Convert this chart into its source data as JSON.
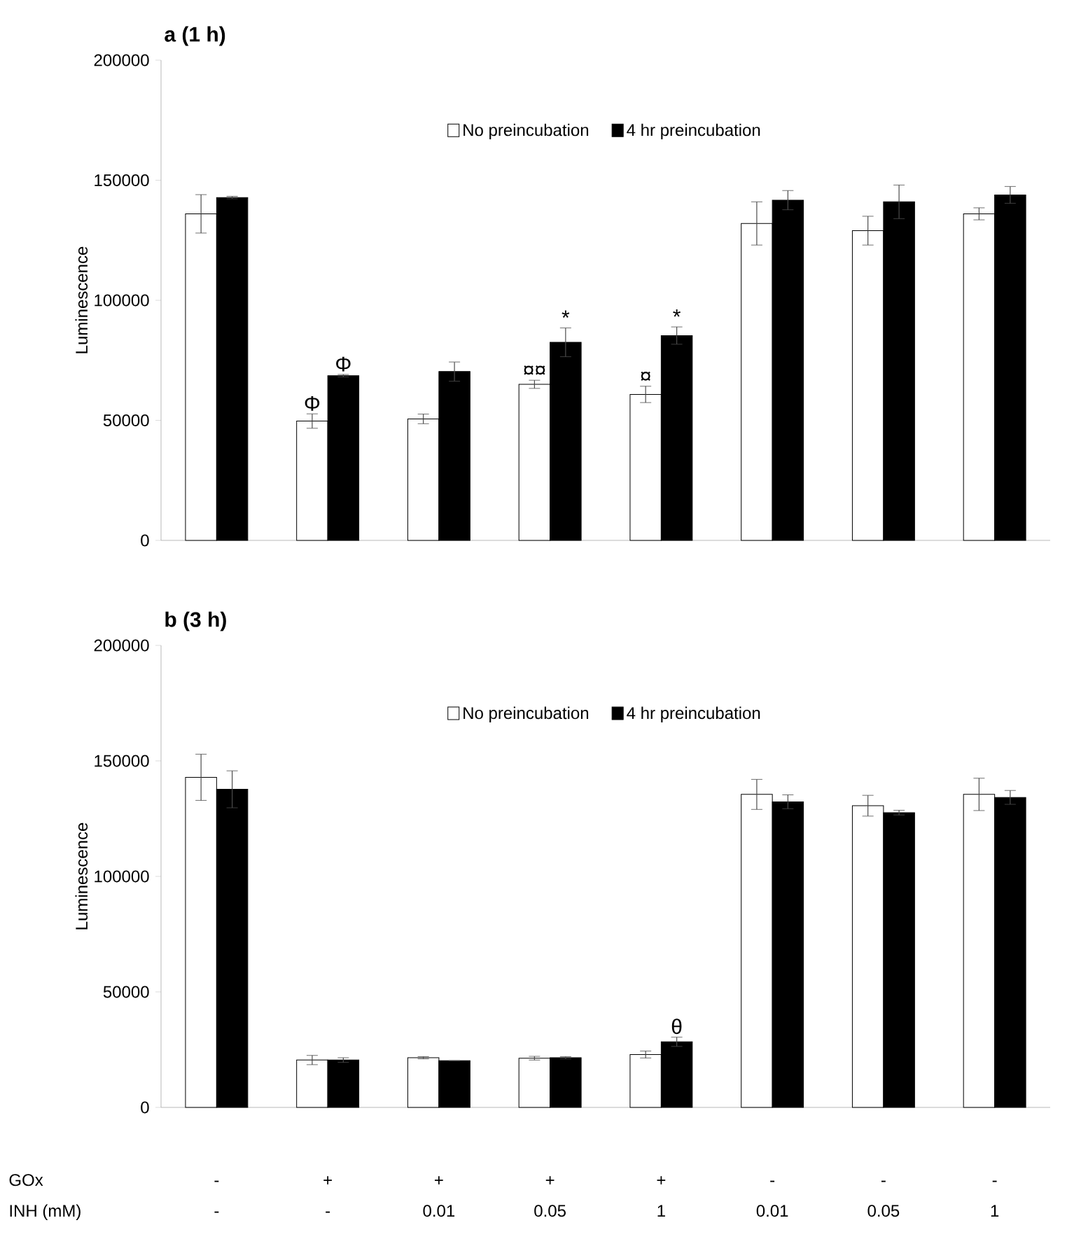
{
  "chart_data": [
    {
      "type": "bar",
      "title": "a (1 h)",
      "ylabel": "Luminescence",
      "categories": [
        null,
        null,
        null,
        null,
        null,
        null,
        null,
        null
      ],
      "series": [
        {
          "name": "No preincubation",
          "color": "#ffffff",
          "values": [
            136000,
            49700,
            50600,
            65000,
            60800,
            132000,
            129000,
            136000
          ],
          "errors": [
            8000,
            3000,
            2000,
            1700,
            3400,
            9000,
            6000,
            2500
          ]
        },
        {
          "name": "4 hr preincubation",
          "color": "#000000",
          "values": [
            142800,
            68600,
            70300,
            82500,
            85300,
            141700,
            141000,
            143900
          ],
          "errors": [
            500,
            500,
            4000,
            6000,
            3600,
            4000,
            7000,
            3500
          ]
        }
      ],
      "ylim": [
        0,
        200000
      ],
      "yticks": [
        0,
        50000,
        100000,
        150000,
        200000
      ],
      "legend": "top",
      "tick_labels": "y",
      "annotations": [
        "Φ",
        "Φ",
        "¤¤",
        "*",
        "¤",
        "*"
      ]
    },
    {
      "type": "bar",
      "title": "b (3 h)",
      "ylabel": "Luminescence",
      "categories": [
        "-",
        "-",
        "0.01",
        "0.05",
        "1",
        "0.01",
        "0.05",
        "1"
      ],
      "series": [
        {
          "name": "No preincubation",
          "color": "#ffffff",
          "values": [
            142900,
            20500,
            21500,
            21300,
            22900,
            135500,
            130600,
            135500
          ],
          "errors": [
            10000,
            2000,
            500,
            800,
            1500,
            6500,
            4500,
            7000
          ]
        },
        {
          "name": "4 hr preincubation",
          "color": "#000000",
          "values": [
            137700,
            20500,
            20200,
            21500,
            28400,
            132300,
            127600,
            134200
          ],
          "errors": [
            8000,
            1000,
            0,
            500,
            2000,
            3000,
            1000,
            3000
          ]
        }
      ],
      "ylim": [
        0,
        200000
      ],
      "yticks": [
        0,
        50000,
        100000,
        150000,
        200000
      ],
      "legend": "top",
      "annotations": [
        "θ",
        "GOx",
        "-",
        "+",
        "+",
        "+",
        "+",
        "-",
        "-",
        "-",
        "INH (mM)"
      ]
    }
  ]
}
